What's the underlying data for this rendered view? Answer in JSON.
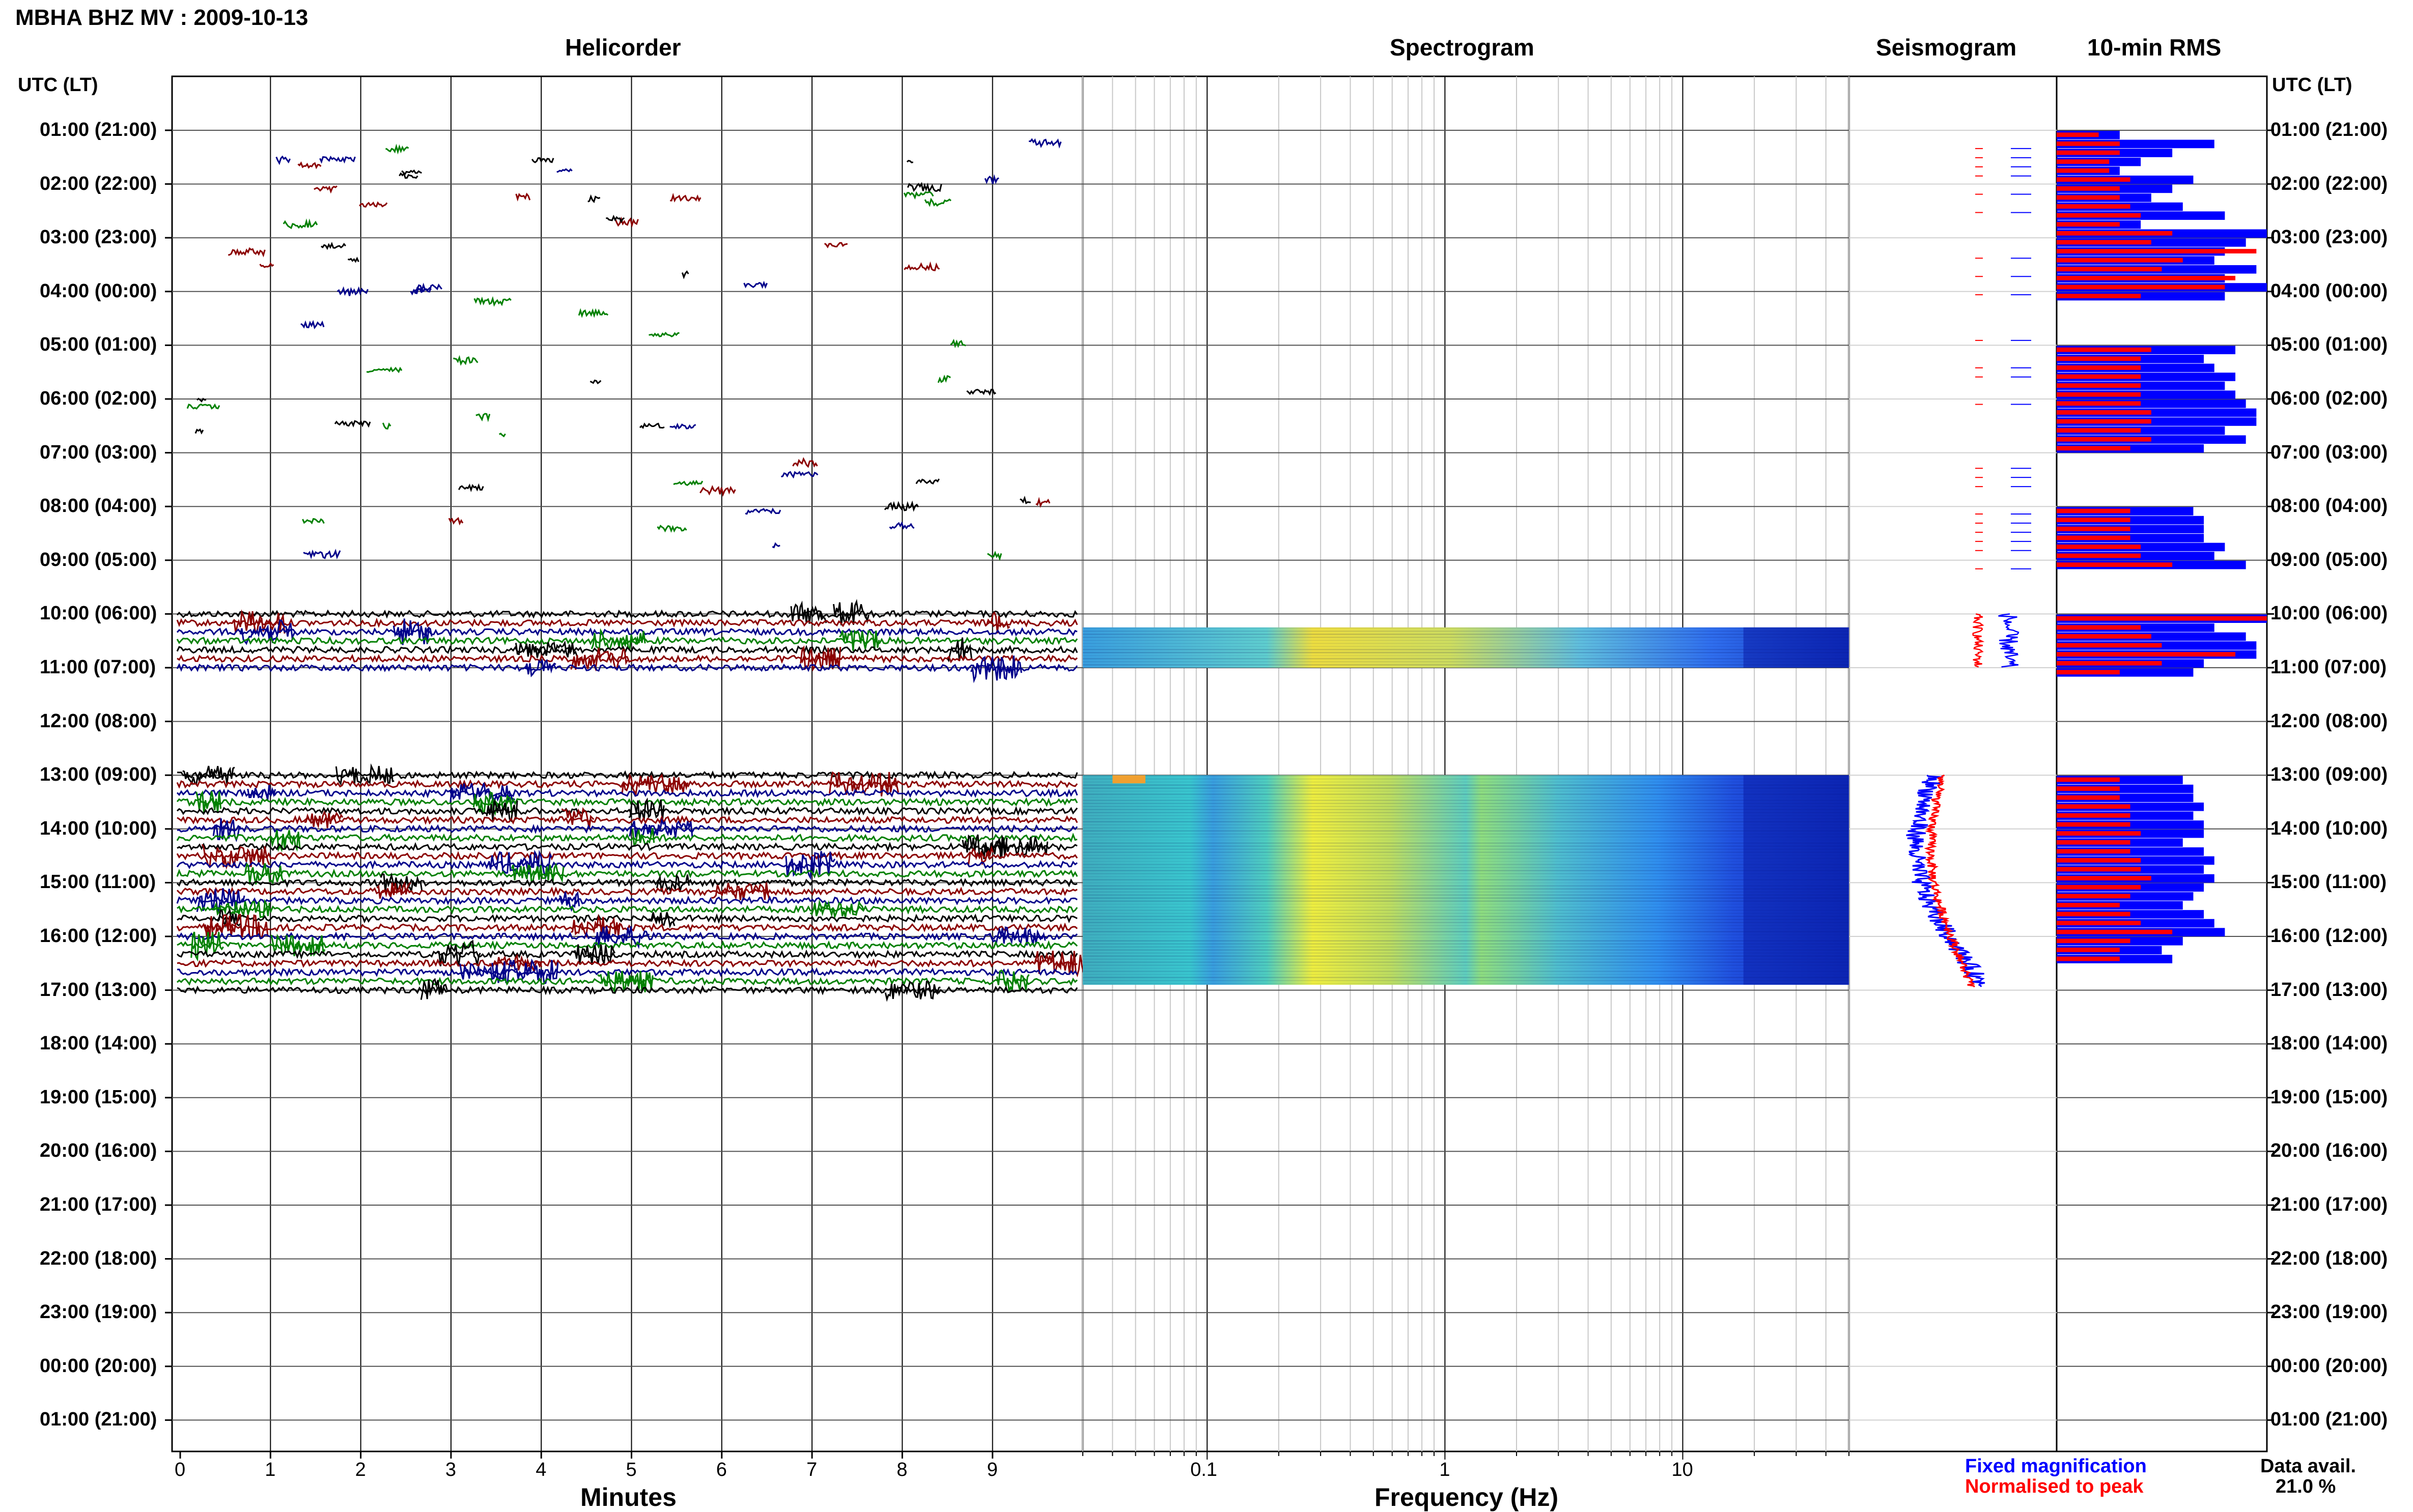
{
  "header": {
    "title": "MBHA BHZ MV : 2009-10-13"
  },
  "panels": {
    "helicorder": "Helicorder",
    "spectrogram": "Spectrogram",
    "seismogram": "Seismogram",
    "rms": "10-min RMS"
  },
  "axis": {
    "time_label": "UTC (LT)",
    "helicorder_xlabel": "Minutes",
    "spectrogram_xlabel": "Frequency (Hz)"
  },
  "legend": {
    "fixed": "Fixed magnification",
    "normalised": "Normalised to peak"
  },
  "availability": {
    "label": "Data avail.",
    "value": "21.0 %"
  },
  "colors": {
    "black": "#000000",
    "red": "#8b0000",
    "blue": "#00008b",
    "green": "#008000",
    "rms_blue": "#0000ff",
    "rms_red": "#ff0000"
  },
  "chart_data": {
    "type": "heatmap",
    "rows": [
      "01:00 (21:00)",
      "02:00 (22:00)",
      "03:00 (23:00)",
      "04:00 (00:00)",
      "05:00 (01:00)",
      "06:00 (02:00)",
      "07:00 (03:00)",
      "08:00 (04:00)",
      "09:00 (05:00)",
      "10:00 (06:00)",
      "11:00 (07:00)",
      "12:00 (08:00)",
      "13:00 (09:00)",
      "14:00 (10:00)",
      "15:00 (11:00)",
      "16:00 (12:00)",
      "17:00 (13:00)",
      "18:00 (14:00)",
      "19:00 (15:00)",
      "20:00 (16:00)",
      "21:00 (17:00)",
      "22:00 (18:00)",
      "23:00 (19:00)",
      "00:00 (20:00)",
      "01:00 (21:00)"
    ],
    "helicorder_x_ticks": [
      "0",
      "1",
      "2",
      "3",
      "4",
      "5",
      "6",
      "7",
      "8",
      "9"
    ],
    "helicorder_x_range": [
      0,
      10
    ],
    "spectrogram_x_ticks": [
      "0.1",
      "1",
      "10"
    ],
    "spectrogram_x_range": [
      0.03,
      50
    ],
    "spectrogram_log_x": true,
    "data_windows_utc": [
      [
        10,
        11
      ],
      [
        13,
        17
      ]
    ],
    "rms_10min_fixed": [
      0.3,
      0.75,
      0.55,
      0.4,
      0.3,
      0.65,
      0.55,
      0.45,
      0.6,
      0.8,
      0.4,
      1.0,
      0.9,
      0.8,
      0.75,
      0.95,
      0.8,
      1.0,
      0.8,
      0.85,
      0.7,
      0.75,
      0.85,
      0.8,
      0.85,
      0.9,
      0.95,
      0.95,
      0.8,
      0.9,
      0.7,
      0.65,
      0.7,
      0.7,
      0.7,
      0.8,
      0.75,
      0.9,
      1.0,
      0.75,
      0.9,
      0.95,
      0.95,
      0.7,
      0.65,
      0.6,
      0.65,
      0.65,
      0.7,
      0.65,
      0.7,
      0.7,
      0.6,
      0.7,
      0.75,
      0.7,
      0.75,
      0.7,
      0.65,
      0.6,
      0.7,
      0.75,
      0.8,
      0.6,
      0.5,
      0.55
    ],
    "rms_10min_normalised": [
      0.2,
      0.3,
      0.3,
      0.25,
      0.25,
      0.35,
      0.3,
      0.3,
      0.35,
      0.4,
      0.3,
      0.55,
      0.45,
      0.95,
      0.6,
      0.5,
      0.85,
      0.8,
      0.4,
      0.45,
      0.4,
      0.4,
      0.4,
      0.4,
      0.4,
      0.4,
      0.45,
      0.45,
      0.4,
      0.45,
      0.35,
      0.35,
      0.35,
      0.35,
      0.35,
      0.4,
      0.4,
      0.55,
      1.0,
      0.4,
      0.45,
      0.5,
      0.85,
      0.5,
      0.3,
      0.3,
      0.3,
      0.3,
      0.35,
      0.35,
      0.35,
      0.4,
      0.35,
      0.35,
      0.4,
      0.4,
      0.45,
      0.4,
      0.35,
      0.3,
      0.35,
      0.4,
      0.55,
      0.35,
      0.3,
      0.3
    ]
  }
}
